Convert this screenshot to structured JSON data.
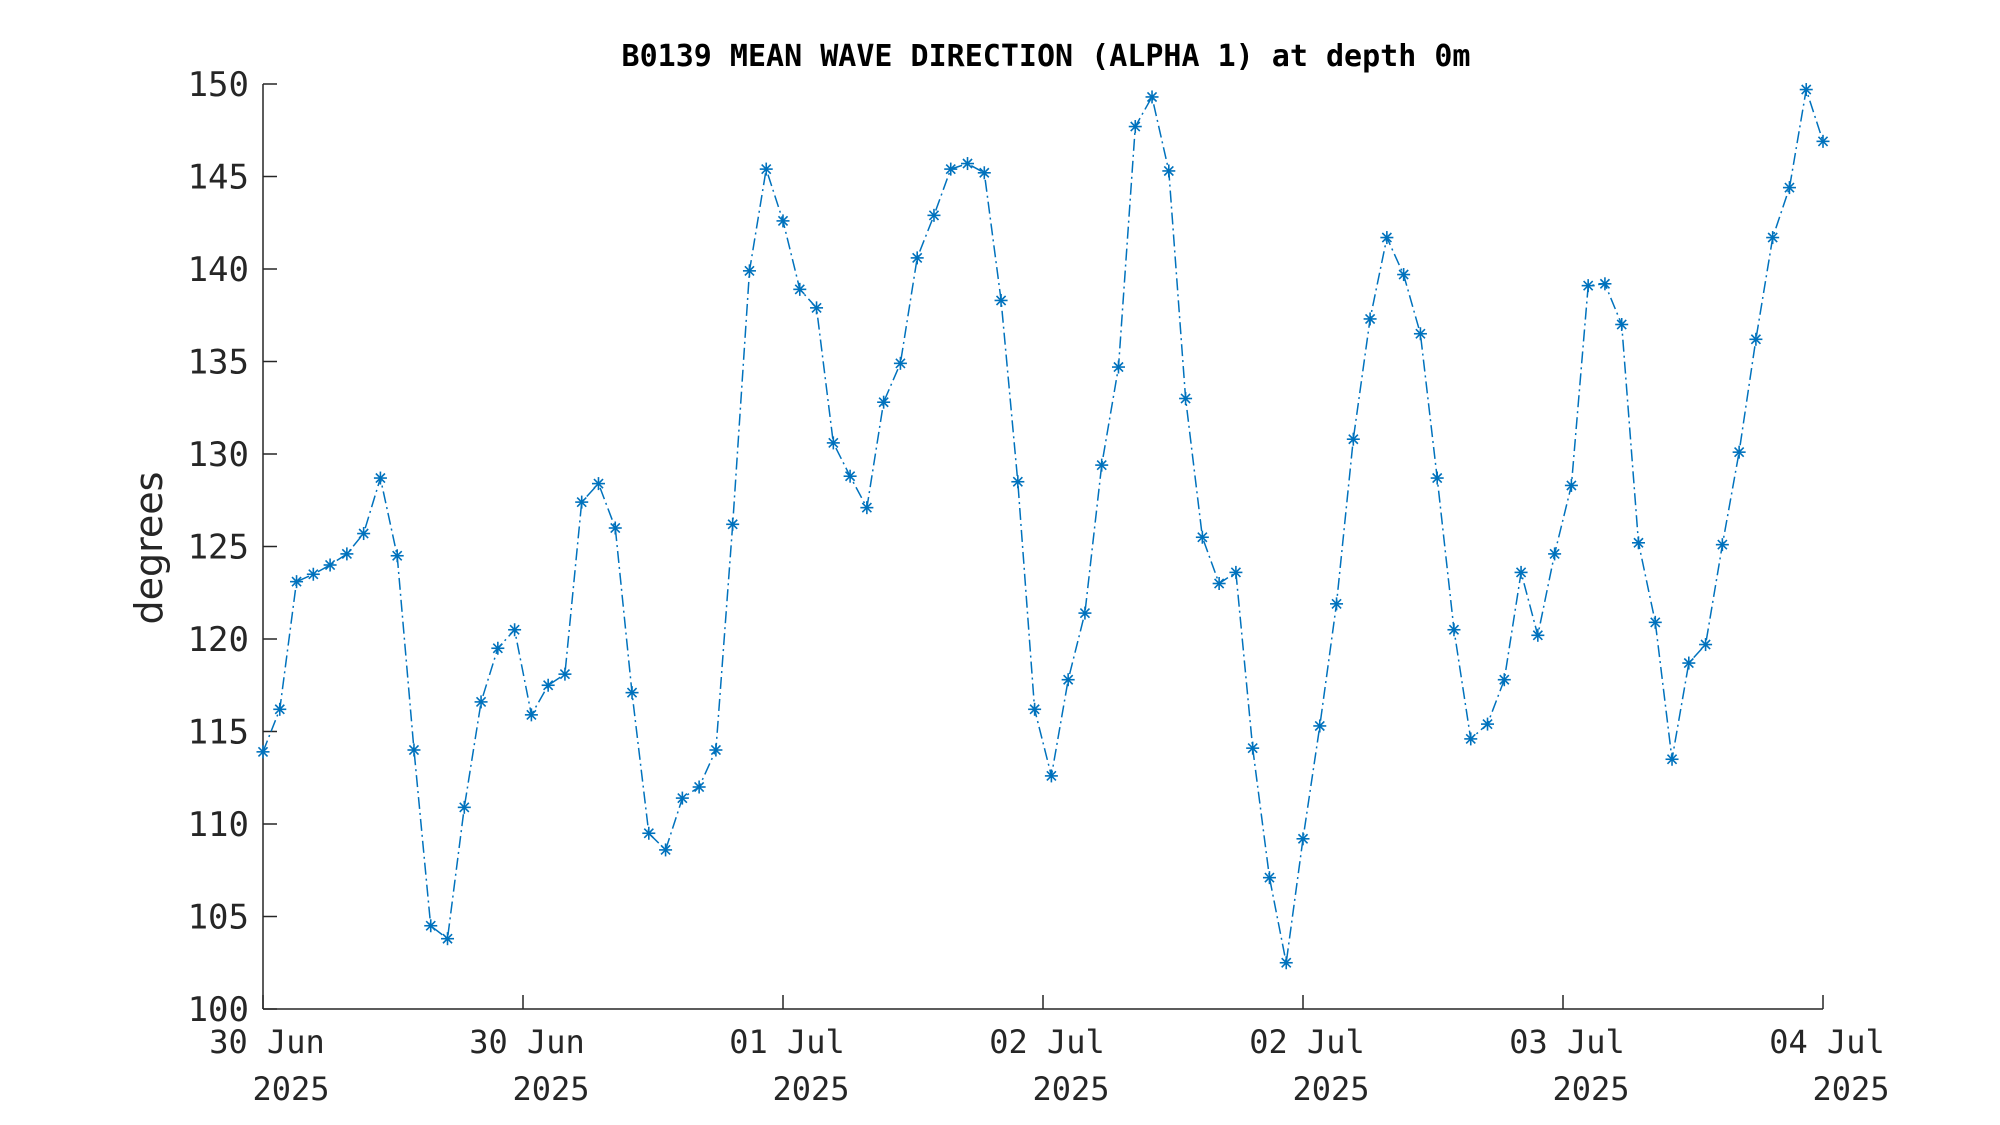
{
  "chart_data": {
    "type": "line",
    "title": "B0139 MEAN WAVE DIRECTION (ALPHA 1) at depth 0m",
    "xlabel": "",
    "ylabel": "degrees",
    "ylim": [
      100,
      150
    ],
    "yticks": [
      "100",
      "105",
      "110",
      "115",
      "120",
      "125",
      "130",
      "135",
      "140",
      "145",
      "150"
    ],
    "xticks": [
      {
        "day": "30 Jun",
        "year": "2025"
      },
      {
        "day": "30 Jun",
        "year": "2025"
      },
      {
        "day": "01 Jul",
        "year": "2025"
      },
      {
        "day": "02 Jul",
        "year": "2025"
      },
      {
        "day": "02 Jul",
        "year": "2025"
      },
      {
        "day": "03 Jul",
        "year": "2025"
      },
      {
        "day": "04 Jul",
        "year": "2025"
      }
    ],
    "line_style": "dash-dot",
    "marker": "asterisk",
    "color": "#0072BD",
    "grid": false,
    "series": [
      {
        "values": [
          113.9,
          116.2,
          123.1,
          123.5,
          124.0,
          124.6,
          125.7,
          128.7,
          124.5,
          114.0,
          104.5,
          103.8,
          110.9,
          116.6,
          119.5,
          120.5,
          115.9,
          117.5,
          118.1,
          127.4,
          128.4,
          126.0,
          117.1,
          109.5,
          108.6,
          111.4,
          112.0,
          114.0,
          126.2,
          139.9,
          145.4,
          142.6,
          138.9,
          137.9,
          130.6,
          128.8,
          127.1,
          132.8,
          134.9,
          140.6,
          142.9,
          145.4,
          145.7,
          145.2,
          138.3,
          128.5,
          116.2,
          112.6,
          117.8,
          121.4,
          129.4,
          134.7,
          147.7,
          149.3,
          145.3,
          133.0,
          125.5,
          123.0,
          123.6,
          114.1,
          107.1,
          102.5,
          109.2,
          115.3,
          121.9,
          130.8,
          137.3,
          141.7,
          139.7,
          136.5,
          128.7,
          120.5,
          114.6,
          115.4,
          117.8,
          123.6,
          120.2,
          124.6,
          128.3,
          139.1,
          139.2,
          137.0,
          125.2,
          120.9,
          113.5,
          118.7,
          119.7,
          125.1,
          130.1,
          136.2,
          141.7,
          144.4,
          149.7,
          146.9
        ]
      }
    ]
  }
}
